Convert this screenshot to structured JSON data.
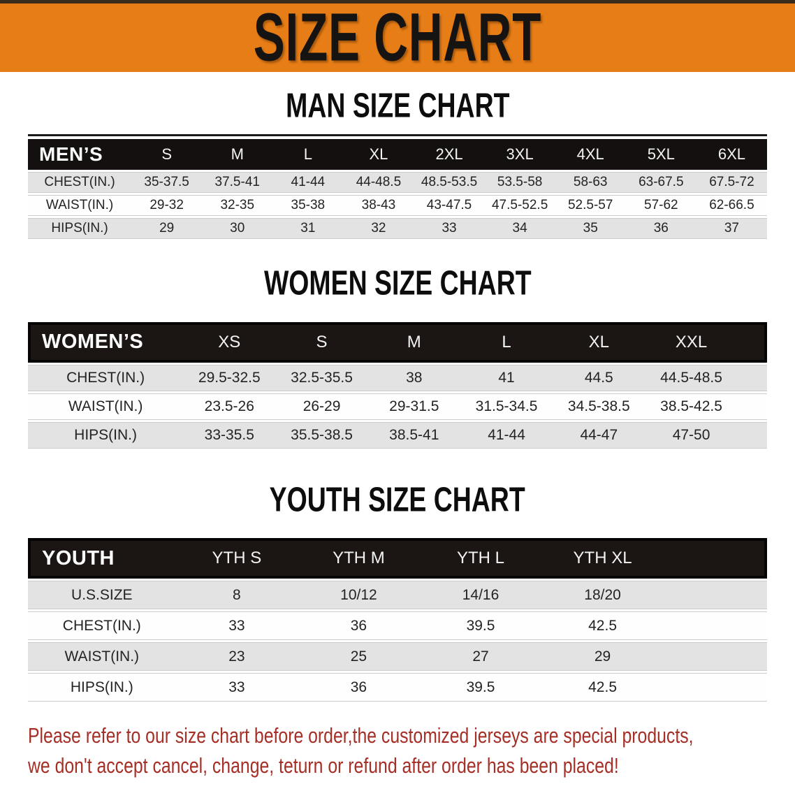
{
  "banner": {
    "title": "SIZE CHART"
  },
  "colors": {
    "banner_bg": "#e67d16",
    "header_bar": "#14100f",
    "row_gray": "#e3e3e3",
    "disclaimer_red": "#a52f26"
  },
  "sections": [
    {
      "id": "men",
      "heading": "MAN SIZE CHART",
      "header": [
        "MEN’S",
        "S",
        "M",
        "L",
        "XL",
        "2XL",
        "3XL",
        "4XL",
        "5XL",
        "6XL"
      ],
      "rows": [
        {
          "label": "CHEST(IN.)",
          "values": [
            "35-37.5",
            "37.5-41",
            "41-44",
            "44-48.5",
            "48.5-53.5",
            "53.5-58",
            "58-63",
            "63-67.5",
            "67.5-72"
          ]
        },
        {
          "label": "WAIST(IN.)",
          "values": [
            "29-32",
            "32-35",
            "35-38",
            "38-43",
            "43-47.5",
            "47.5-52.5",
            "52.5-57",
            "57-62",
            "62-66.5"
          ]
        },
        {
          "label": "HIPS(IN.)",
          "values": [
            "29",
            "30",
            "31",
            "32",
            "33",
            "34",
            "35",
            "36",
            "37"
          ]
        }
      ]
    },
    {
      "id": "women",
      "heading": "WOMEN SIZE CHART",
      "header": [
        "WOMEN’S",
        "XS",
        "S",
        "M",
        "L",
        "XL",
        "XXL"
      ],
      "rows": [
        {
          "label": "CHEST(IN.)",
          "values": [
            "29.5-32.5",
            "32.5-35.5",
            "38",
            "41",
            "44.5",
            "44.5-48.5"
          ]
        },
        {
          "label": "WAIST(IN.)",
          "values": [
            "23.5-26",
            "26-29",
            "29-31.5",
            "31.5-34.5",
            "34.5-38.5",
            "38.5-42.5"
          ]
        },
        {
          "label": "HIPS(IN.)",
          "values": [
            "33-35.5",
            "35.5-38.5",
            "38.5-41",
            "41-44",
            "44-47",
            "47-50"
          ]
        }
      ]
    },
    {
      "id": "youth",
      "heading": "YOUTH SIZE CHART",
      "header": [
        "YOUTH",
        "YTH S",
        "YTH M",
        "YTH L",
        "YTH XL"
      ],
      "rows": [
        {
          "label": "U.S.SIZE",
          "values": [
            "8",
            "10/12",
            "14/16",
            "18/20"
          ]
        },
        {
          "label": "CHEST(IN.)",
          "values": [
            "33",
            "36",
            "39.5",
            "42.5"
          ]
        },
        {
          "label": "WAIST(IN.)",
          "values": [
            "23",
            "25",
            "27",
            "29"
          ]
        },
        {
          "label": "HIPS(IN.)",
          "values": [
            "33",
            "36",
            "39.5",
            "42.5"
          ]
        }
      ]
    }
  ],
  "footer": {
    "line1": "Please refer to our size chart before order,the customized jerseys are special products,",
    "line2": "we don't accept cancel, change, teturn or refund after order has been placed!"
  }
}
